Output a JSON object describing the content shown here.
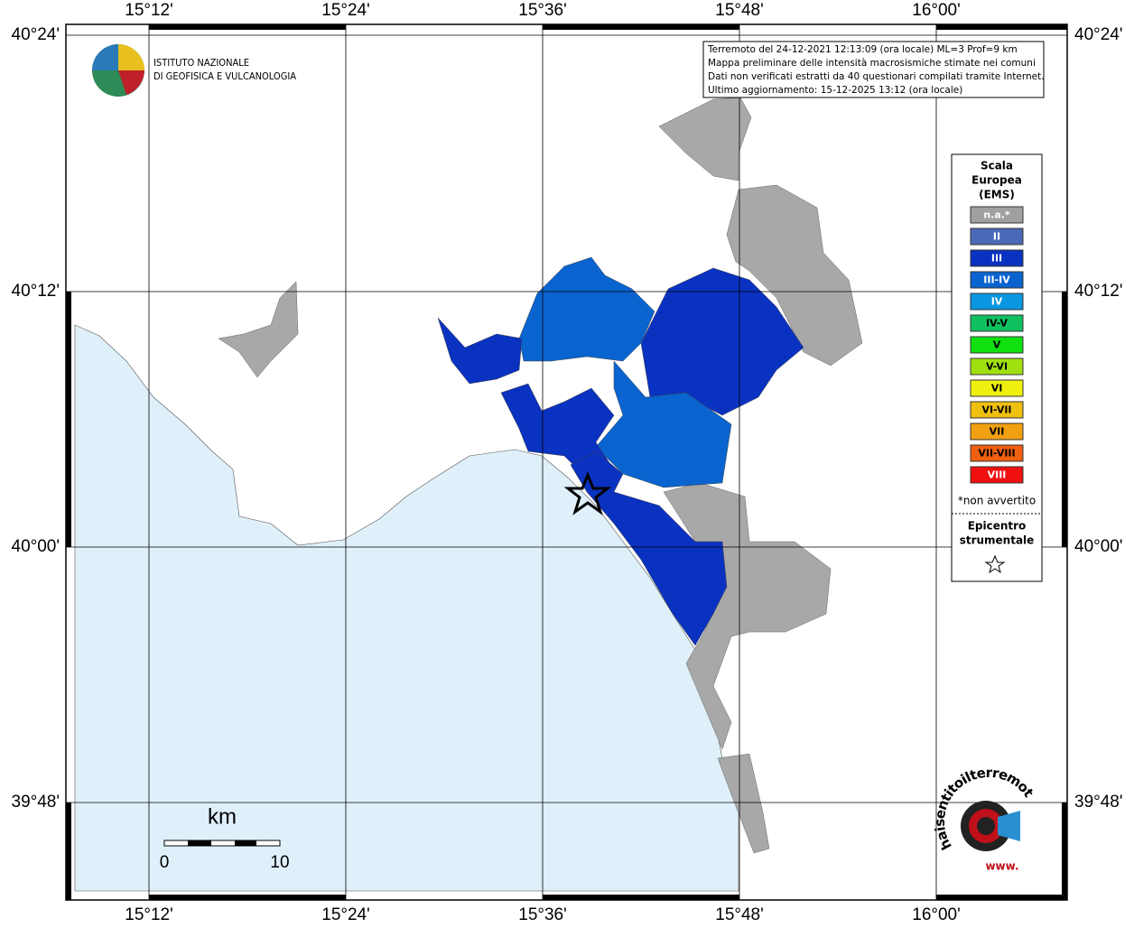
{
  "header": {
    "logo_lines": [
      "ISTITUTO NAZIONALE",
      "DI GEOFISICA E VULCANOLOGIA"
    ]
  },
  "info": {
    "lines": [
      "Terremoto del 24-12-2021 12:13:09 (ora locale) ML=3 Prof=9 km",
      "Mappa preliminare delle intensità macrosismiche stimate nei comuni",
      "Dati non verificati estratti da 40 questionari compilati tramite Internet.",
      "Ultimo aggiornamento: 15-12-2025 13:12 (ora locale)"
    ]
  },
  "axes": {
    "longitudes": [
      "15°12'",
      "15°24'",
      "15°36'",
      "15°48'",
      "16°00'"
    ],
    "latitudes": [
      "40°24'",
      "40°12'",
      "40°00'",
      "39°48'"
    ]
  },
  "legend": {
    "title_lines": [
      "Scala",
      "Europea",
      "(EMS)"
    ],
    "items": [
      {
        "label": "n.a.*",
        "color": "#a0a0a0",
        "text_color": "#ffffff"
      },
      {
        "label": "II",
        "color": "#4a6ab8",
        "text_color": "#ffffff"
      },
      {
        "label": "III",
        "color": "#0a32c0",
        "text_color": "#ffffff"
      },
      {
        "label": "III-IV",
        "color": "#0a64d0",
        "text_color": "#ffffff"
      },
      {
        "label": "IV",
        "color": "#0a96e0",
        "text_color": "#ffffff"
      },
      {
        "label": "IV-V",
        "color": "#10c060",
        "text_color": "#000000"
      },
      {
        "label": "V",
        "color": "#10e010",
        "text_color": "#000000"
      },
      {
        "label": "V-VI",
        "color": "#a0e010",
        "text_color": "#000000"
      },
      {
        "label": "VI",
        "color": "#f0f010",
        "text_color": "#000000"
      },
      {
        "label": "VI-VII",
        "color": "#f0c010",
        "text_color": "#000000"
      },
      {
        "label": "VII",
        "color": "#f0a010",
        "text_color": "#000000"
      },
      {
        "label": "VII-VIII",
        "color": "#f06010",
        "text_color": "#000000"
      },
      {
        "label": "VIII",
        "color": "#f01010",
        "text_color": "#ffffff"
      }
    ],
    "footnote": "*non avvertito",
    "epicenter_lines": [
      "Epicentro",
      "strumentale"
    ]
  },
  "scale_bar": {
    "unit": "km",
    "labels": [
      "0",
      "10"
    ]
  },
  "badge": {
    "text": "haisentitoilterremoto.it",
    "prefix": "www."
  }
}
